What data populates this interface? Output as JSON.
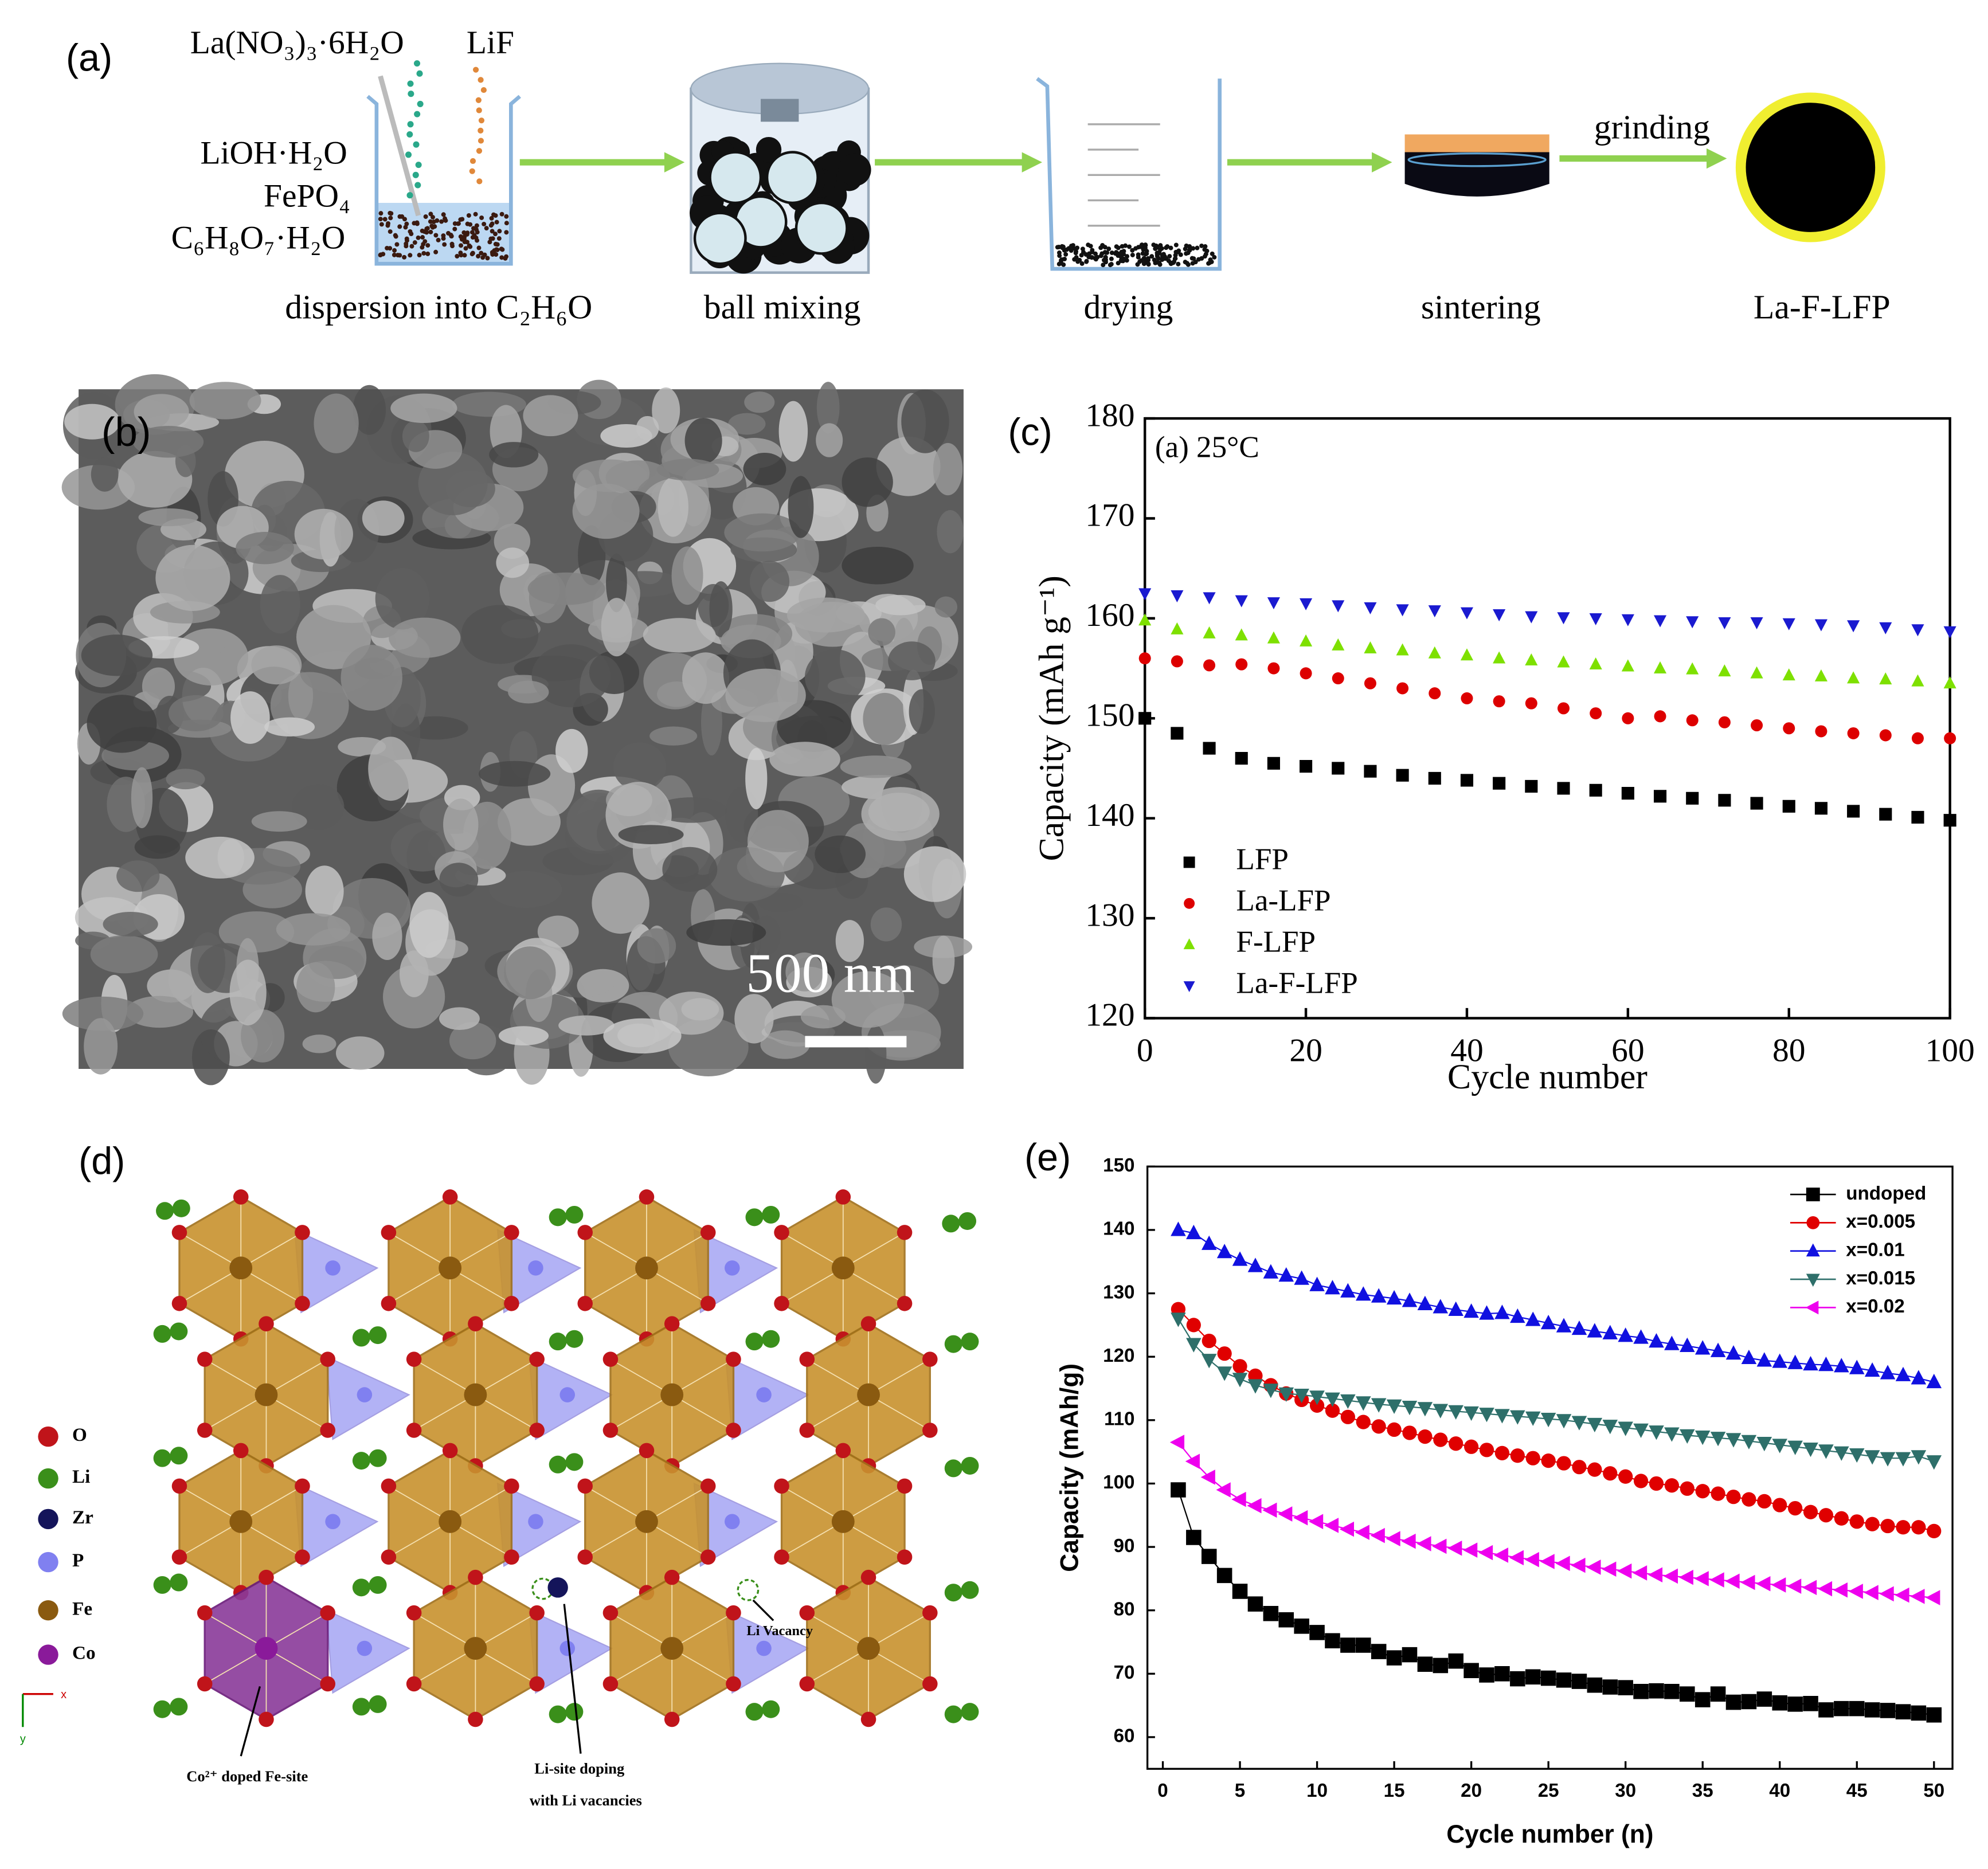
{
  "scheme": {
    "label": "(a)",
    "reagents": [
      "La(NO₃)₃·6H₂O",
      "LiF",
      "LiOH·H₂O",
      "FePO₄",
      "C₆H₈O₇·H₂O"
    ],
    "steps": [
      "dispersion into C₂H₆O",
      "ball mixing",
      "drying",
      "sintering",
      "La-F-LFP"
    ],
    "arrow_label": "grinding"
  },
  "sem": {
    "label": "(b)",
    "scale_bar": "500 nm"
  },
  "structure": {
    "label": "(d)",
    "legend": [
      {
        "label": "O",
        "color": "#c0141a"
      },
      {
        "label": "Li",
        "color": "#3a8f1a"
      },
      {
        "label": "Zr",
        "color": "#14145a"
      },
      {
        "label": "P",
        "color": "#8080f0"
      },
      {
        "label": "Fe",
        "color": "#8a5a10"
      },
      {
        "label": "Co",
        "color": "#8a1a9a"
      }
    ],
    "annotations": [
      "Co²⁺ doped Fe-site",
      "Li-site doping",
      "with Li vacancies",
      "Li Vacancy"
    ],
    "axes": [
      "x",
      "y"
    ]
  },
  "chart_data": [
    {
      "type": "scatter",
      "label": "(c)",
      "annotation": "(a) 25°C",
      "x_label": "Cycle number",
      "y_label": "Capacity (mAh g⁻¹)",
      "xlim": [
        0,
        100
      ],
      "ylim": [
        120,
        180
      ],
      "xticks": [
        0,
        20,
        40,
        60,
        80,
        100
      ],
      "yticks": [
        120,
        130,
        140,
        150,
        160,
        170,
        180
      ],
      "legend": "lower left",
      "x": [
        0,
        4,
        8,
        12,
        16,
        20,
        24,
        28,
        32,
        36,
        40,
        44,
        48,
        52,
        56,
        60,
        64,
        68,
        72,
        76,
        80,
        84,
        88,
        92,
        96,
        100
      ],
      "series": [
        {
          "name": "LFP",
          "color": "#000000",
          "marker": "square",
          "values": [
            150,
            148.5,
            147,
            146,
            145.5,
            145.2,
            145,
            144.7,
            144.3,
            144,
            143.8,
            143.5,
            143.2,
            143,
            142.8,
            142.5,
            142.2,
            142,
            141.8,
            141.5,
            141.2,
            141,
            140.7,
            140.4,
            140.1,
            139.8
          ]
        },
        {
          "name": "La-LFP",
          "color": "#dd0000",
          "marker": "circle",
          "values": [
            156,
            155.7,
            155.3,
            155.4,
            155,
            154.5,
            154,
            153.5,
            153,
            152.5,
            152,
            151.7,
            151.5,
            151,
            150.5,
            150,
            150.2,
            149.8,
            149.6,
            149.3,
            149,
            148.7,
            148.5,
            148.3,
            148,
            148
          ]
        },
        {
          "name": "F-LFP",
          "color": "#7ee000",
          "marker": "triangle-up",
          "values": [
            159.8,
            158.9,
            158.5,
            158.3,
            158,
            157.7,
            157.3,
            157,
            156.8,
            156.5,
            156.3,
            156,
            155.8,
            155.6,
            155.4,
            155.2,
            155,
            154.9,
            154.7,
            154.5,
            154.3,
            154.2,
            154,
            153.9,
            153.7,
            153.5
          ]
        },
        {
          "name": "La-F-LFP",
          "color": "#1a1ad0",
          "marker": "triangle-down",
          "values": [
            162.5,
            162.3,
            162.1,
            161.8,
            161.6,
            161.5,
            161.3,
            161.1,
            160.9,
            160.8,
            160.6,
            160.4,
            160.2,
            160.1,
            160,
            159.9,
            159.8,
            159.7,
            159.6,
            159.6,
            159.5,
            159.4,
            159.3,
            159.1,
            158.9,
            158.7
          ]
        }
      ]
    },
    {
      "type": "line",
      "label": "(e)",
      "x_label": "Cycle number (n)",
      "y_label": "Capacity (mAh/g)",
      "xlim": [
        -1,
        51.2
      ],
      "ylim": [
        55,
        150
      ],
      "xticks": [
        0,
        5,
        10,
        15,
        20,
        25,
        30,
        35,
        40,
        45,
        50
      ],
      "yticks": [
        60,
        70,
        80,
        90,
        100,
        110,
        120,
        130,
        140,
        150
      ],
      "legend": "upper right",
      "x": [
        1,
        2,
        3,
        4,
        5,
        6,
        7,
        8,
        9,
        10,
        11,
        12,
        13,
        14,
        15,
        16,
        17,
        18,
        19,
        20,
        21,
        22,
        23,
        24,
        25,
        26,
        27,
        28,
        29,
        30,
        31,
        32,
        33,
        34,
        35,
        36,
        37,
        38,
        39,
        40,
        41,
        42,
        43,
        44,
        45,
        46,
        47,
        48,
        49,
        50
      ],
      "series": [
        {
          "name": "undoped",
          "color": "#000000",
          "marker": "square",
          "values": [
            99,
            91.5,
            88.5,
            85.5,
            83,
            81,
            79.5,
            78.5,
            77.5,
            76.5,
            75.2,
            74.5,
            74.5,
            73.5,
            72.5,
            73,
            71.5,
            71.3,
            72,
            70.5,
            69.8,
            70,
            69.2,
            69.5,
            69.3,
            69,
            68.8,
            68.2,
            67.9,
            67.8,
            67.2,
            67.3,
            67.2,
            66.8,
            65.9,
            66.8,
            65.5,
            65.6,
            66,
            65.4,
            65.2,
            65.3,
            64.3,
            64.5,
            64.5,
            64.3,
            64.2,
            64,
            63.8,
            63.5
          ]
        },
        {
          "name": "x=0.005",
          "color": "#e00000",
          "marker": "circle",
          "values": [
            127.5,
            125,
            122.5,
            120.5,
            118.5,
            117,
            115.5,
            114.2,
            113.2,
            112.3,
            111.5,
            110.5,
            109.7,
            109,
            108.5,
            108,
            107.4,
            106.9,
            106.3,
            105.8,
            105.3,
            104.8,
            104.4,
            104,
            103.6,
            103.2,
            102.6,
            102.2,
            101.6,
            101.1,
            100.4,
            100,
            99.7,
            99.2,
            98.8,
            98.4,
            97.9,
            97.5,
            97.2,
            96.6,
            96.1,
            95.5,
            95,
            94.5,
            94,
            93.6,
            93.3,
            93.1,
            93.1,
            92.5
          ]
        },
        {
          "name": "x=0.01",
          "color": "#1010e0",
          "marker": "triangle-up",
          "values": [
            140,
            139.5,
            137.8,
            136.5,
            135.3,
            134.3,
            133.3,
            132.8,
            132.3,
            131.3,
            130.8,
            130.3,
            129.8,
            129.5,
            129.2,
            128.8,
            128.3,
            127.8,
            127.4,
            127.1,
            126.8,
            126.9,
            126.3,
            125.8,
            125.3,
            124.8,
            124.4,
            124,
            123.7,
            123.3,
            123,
            122.4,
            122,
            121.7,
            121.3,
            120.9,
            120.5,
            119.8,
            119.4,
            119.2,
            119,
            118.8,
            118.7,
            118.5,
            118.2,
            117.8,
            117.4,
            117.1,
            116.6,
            116
          ]
        },
        {
          "name": "x=0.015",
          "color": "#2e6f6a",
          "marker": "triangle-down",
          "values": [
            126,
            122,
            119.5,
            117.5,
            116.5,
            115.5,
            114.8,
            114.2,
            114,
            113.7,
            113.4,
            113.1,
            112.8,
            112.5,
            112.3,
            112.1,
            111.9,
            111.6,
            111.4,
            111.2,
            111,
            110.8,
            110.6,
            110.4,
            110.2,
            110,
            109.7,
            109.4,
            109.1,
            108.8,
            108.5,
            108.2,
            107.9,
            107.6,
            107.4,
            107.2,
            107,
            106.7,
            106.4,
            106.1,
            105.8,
            105.5,
            105.2,
            104.9,
            104.6,
            104.3,
            104,
            104,
            104.3,
            103.5
          ]
        },
        {
          "name": "x=0.02",
          "color": "#ee00ee",
          "marker": "triangle-left",
          "values": [
            106.5,
            103.5,
            101,
            99,
            97.5,
            96.5,
            95.8,
            95.2,
            94.6,
            94,
            93.4,
            92.8,
            92.3,
            91.8,
            91.3,
            90.9,
            90.5,
            90.1,
            89.8,
            89.5,
            89.1,
            88.7,
            88.3,
            88,
            87.7,
            87.4,
            87.1,
            86.8,
            86.5,
            86.2,
            85.9,
            85.6,
            85.4,
            85.2,
            85,
            84.8,
            84.6,
            84.4,
            84.2,
            84,
            83.8,
            83.6,
            83.4,
            83.2,
            83,
            82.8,
            82.6,
            82.4,
            82.2,
            82
          ]
        }
      ]
    }
  ]
}
